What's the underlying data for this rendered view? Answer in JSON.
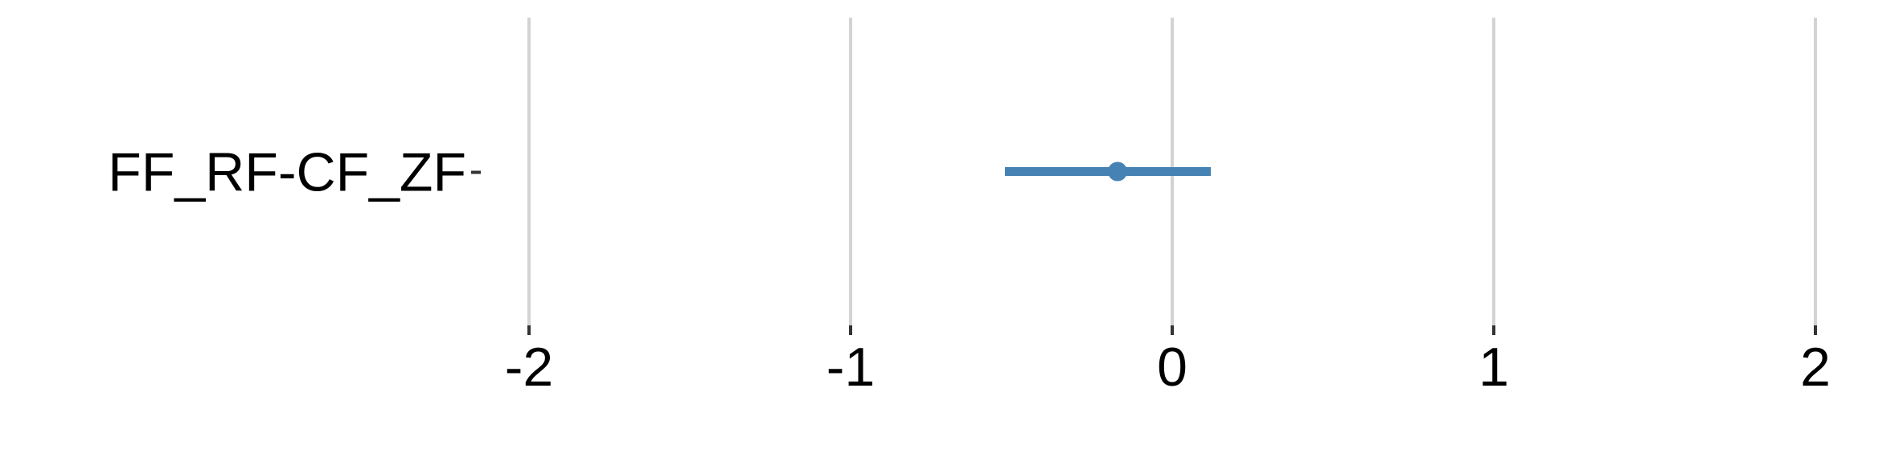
{
  "chart_data": {
    "type": "forest",
    "title": "",
    "xlabel": "",
    "ylabel": "",
    "xlim": [
      -2,
      2
    ],
    "xticks": [
      -2,
      -1,
      0,
      1,
      2
    ],
    "xtick_labels": [
      "-2",
      "-1",
      "0",
      "1",
      "2"
    ],
    "grid": true,
    "legend": "none",
    "series_color": "#4682B4",
    "points": [
      {
        "label": "FF_RF-CF_ZF",
        "estimate": -0.17,
        "lower": -0.52,
        "upper": 0.12
      }
    ]
  }
}
